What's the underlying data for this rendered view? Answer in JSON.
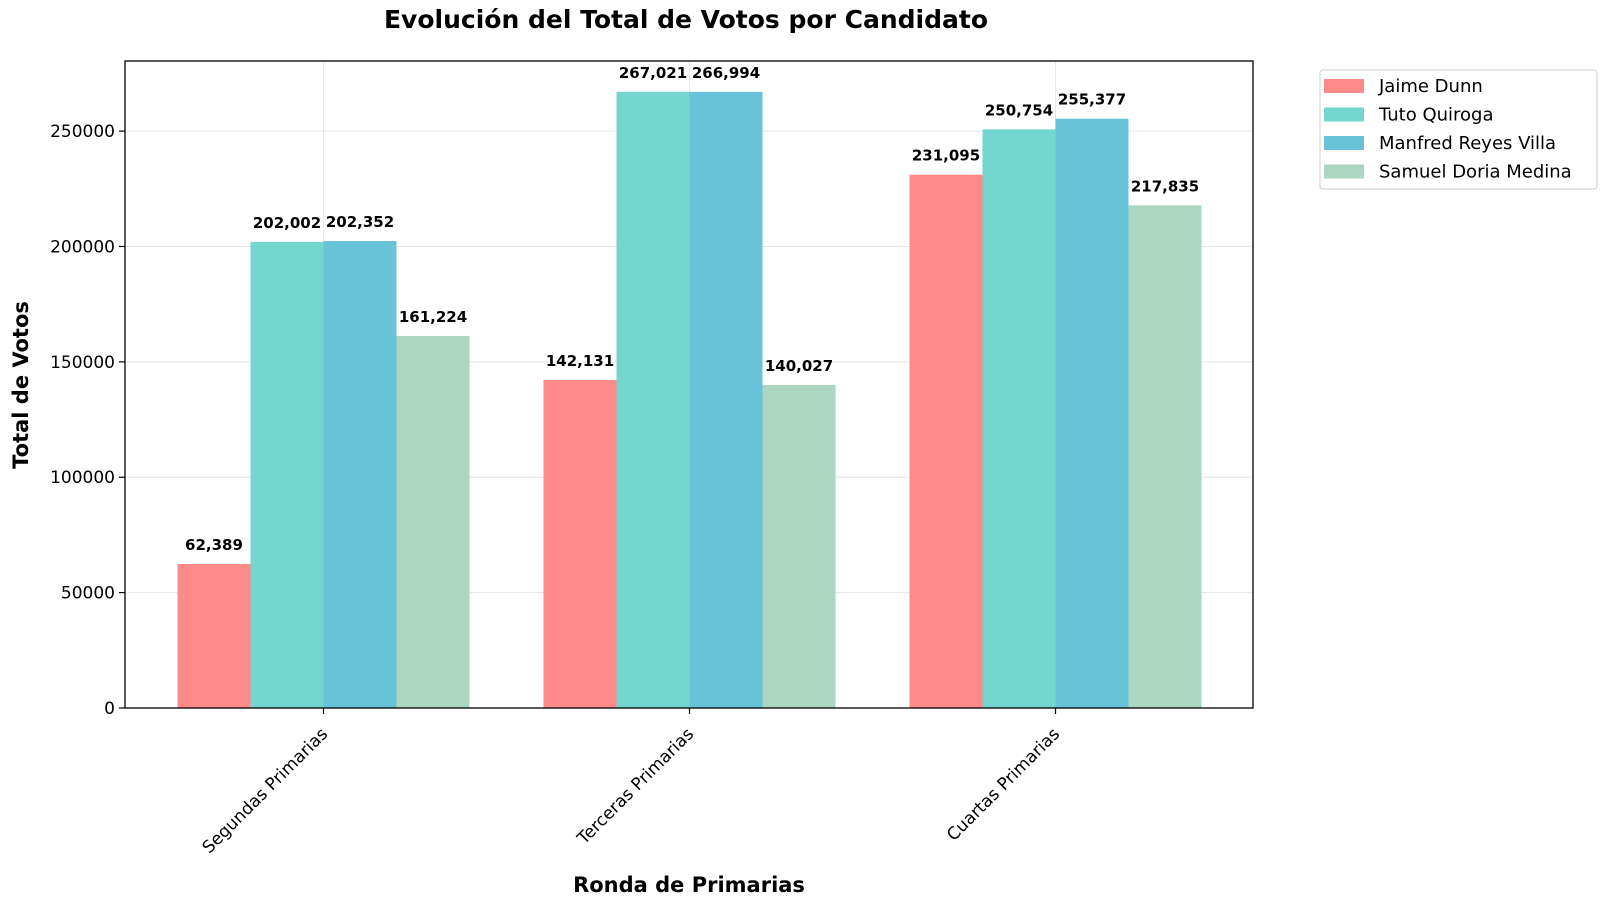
{
  "chart_data": {
    "type": "bar",
    "title": "Evolución del Total de Votos por Candidato",
    "xlabel": "Ronda de Primarias",
    "ylabel": "Total de Votos",
    "categories": [
      "Segundas Primarias",
      "Terceras Primarias",
      "Cuartas Primarias"
    ],
    "series": [
      {
        "name": "Jaime Dunn",
        "color": "#ff8a8a",
        "values": [
          62389,
          142131,
          231095
        ],
        "labels": [
          "62,389",
          "142,131",
          "231,095"
        ]
      },
      {
        "name": "Tuto Quiroga",
        "color": "#75d6cf",
        "values": [
          202002,
          267021,
          250754
        ],
        "labels": [
          "202,002",
          "267,021",
          "250,754"
        ]
      },
      {
        "name": "Manfred Reyes Villa",
        "color": "#68c2d8",
        "values": [
          202352,
          266994,
          255377
        ],
        "labels": [
          "202,352",
          "266,994",
          "255,377"
        ]
      },
      {
        "name": "Samuel Doria Medina",
        "color": "#aad6c2",
        "values": [
          161224,
          140027,
          217835
        ],
        "labels": [
          "161,224",
          "140,027",
          "217,835"
        ]
      }
    ],
    "yticks": [
      0,
      50000,
      100000,
      150000,
      200000,
      250000
    ],
    "ytick_labels": [
      "0",
      "50000",
      "100000",
      "150000",
      "200000",
      "250000"
    ],
    "ylim": [
      0,
      280375
    ],
    "grid": true,
    "legend_position": "outside-right-top"
  }
}
